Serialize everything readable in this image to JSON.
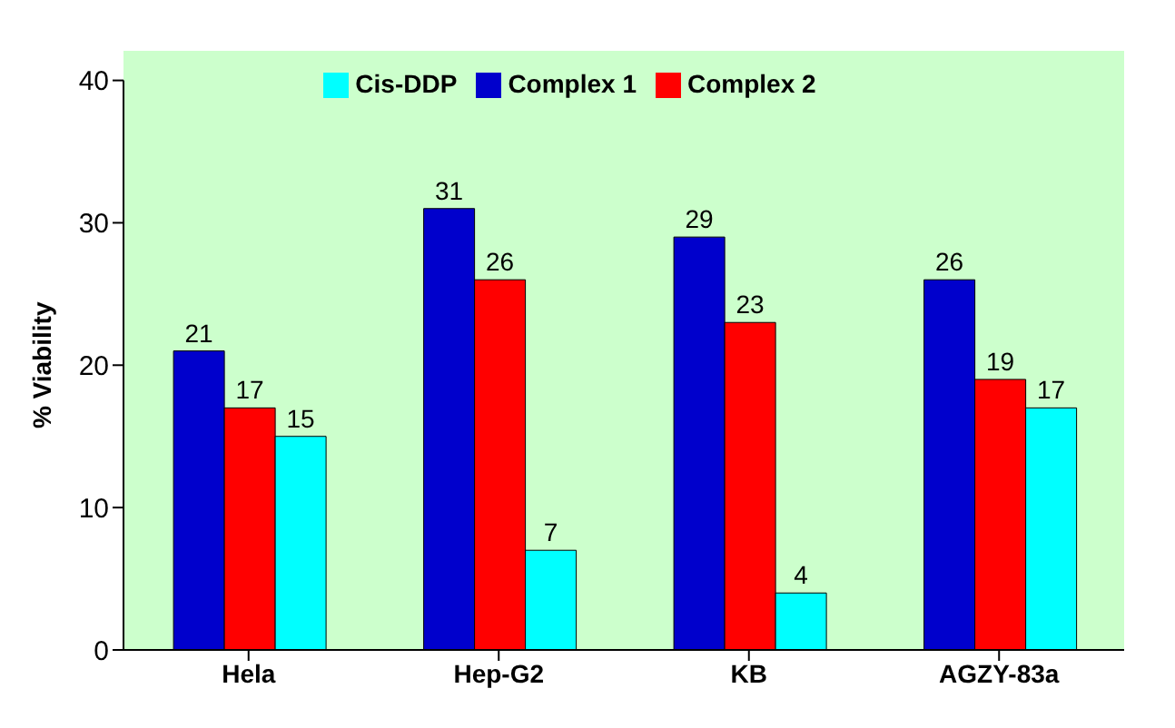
{
  "chart_data": {
    "type": "bar",
    "ylabel": "% Viability",
    "categories": [
      "Hela",
      "Hep-G2",
      "KB",
      "AGZY-83a"
    ],
    "series": [
      {
        "name": "Complex 1",
        "color": "#0000cc",
        "values": [
          21,
          31,
          29,
          26
        ]
      },
      {
        "name": "Complex 2",
        "color": "#ff0000",
        "values": [
          17,
          26,
          23,
          19
        ]
      },
      {
        "name": "Cis-DDP",
        "color": "#00ffff",
        "values": [
          15,
          7,
          4,
          17
        ]
      }
    ],
    "ylim": [
      0,
      40
    ],
    "yticks": [
      0,
      10,
      20,
      30,
      40
    ],
    "grid": false,
    "legend": "top",
    "data_labels": true
  }
}
